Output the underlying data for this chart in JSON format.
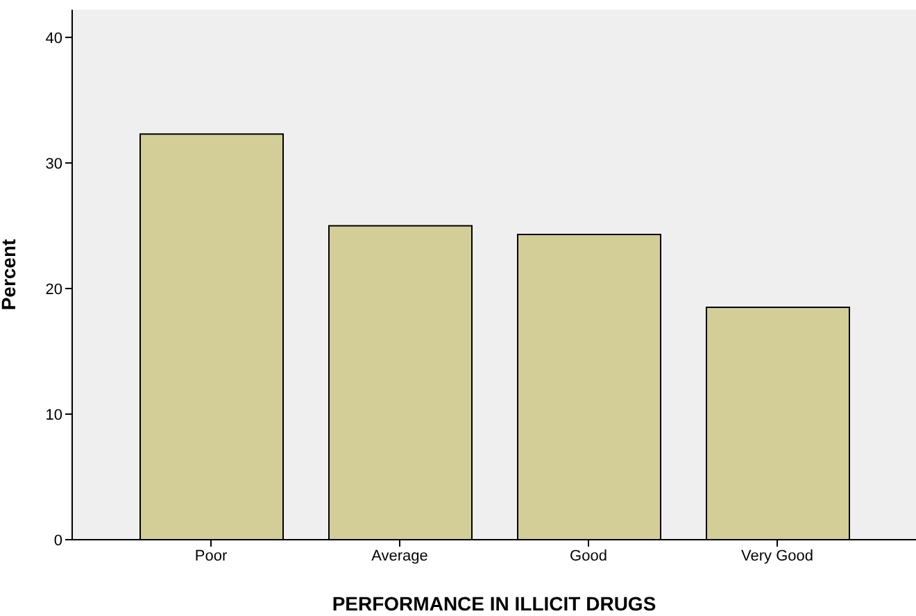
{
  "chart_data": {
    "type": "bar",
    "xlabel": "PERFORMANCE IN ILLICIT DRUGS",
    "ylabel": "Percent",
    "categories": [
      "Poor",
      "Average",
      "Good",
      "Very Good"
    ],
    "values": [
      32.3,
      25.0,
      24.3,
      18.5
    ],
    "color": "#d3ce97",
    "ylim": [
      0,
      42.2
    ],
    "yticks": [
      0,
      10,
      20,
      30,
      40
    ],
    "grid": false,
    "legend": false
  }
}
